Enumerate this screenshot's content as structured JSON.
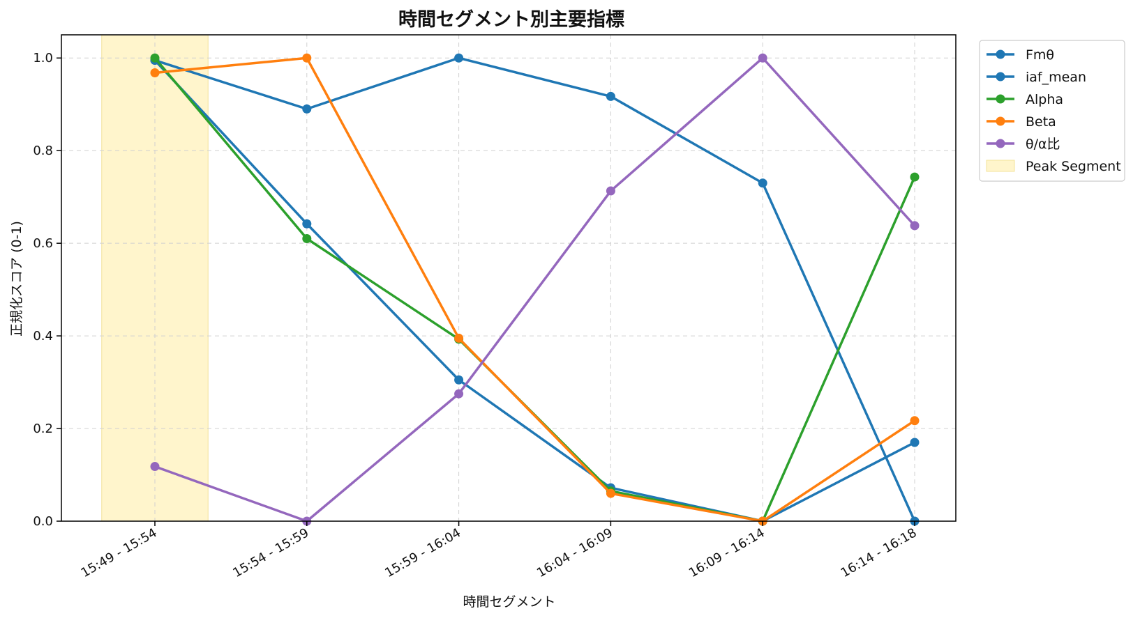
{
  "chart_data": {
    "type": "line",
    "title": "時間セグメント別主要指標",
    "xlabel": "時間セグメント",
    "ylabel": "正規化スコア (0-1)",
    "categories": [
      "15:49 - 15:54",
      "15:54 - 15:59",
      "15:59 - 16:04",
      "16:04 - 16:09",
      "16:09 - 16:14",
      "16:14 - 16:18"
    ],
    "ylim": [
      0,
      1.05
    ],
    "yticks": [
      "0.0",
      "0.2",
      "0.4",
      "0.6",
      "0.8",
      "1.0"
    ],
    "grid": true,
    "legend_position": "outside-top-right",
    "series": [
      {
        "name": "Fmθ",
        "color": "#1f77b4",
        "values": [
          0.995,
          0.642,
          0.305,
          0.072,
          0.0,
          0.17
        ]
      },
      {
        "name": "iaf_mean",
        "color": "#1f77b4",
        "values": [
          0.995,
          0.89,
          1.0,
          0.917,
          0.73,
          0.0
        ]
      },
      {
        "name": "Alpha",
        "color": "#2ca02c",
        "values": [
          1.0,
          0.61,
          0.393,
          0.065,
          0.0,
          0.743
        ]
      },
      {
        "name": "Beta",
        "color": "#ff7f0e",
        "values": [
          0.968,
          1.0,
          0.395,
          0.06,
          0.0,
          0.217
        ]
      },
      {
        "name": "θ/α比",
        "color": "#9467bd",
        "values": [
          0.118,
          0.0,
          0.275,
          0.713,
          1.0,
          0.638
        ]
      }
    ],
    "highlight": {
      "name": "Peak Segment",
      "category_index": 0,
      "color": "#fff5cc"
    }
  }
}
